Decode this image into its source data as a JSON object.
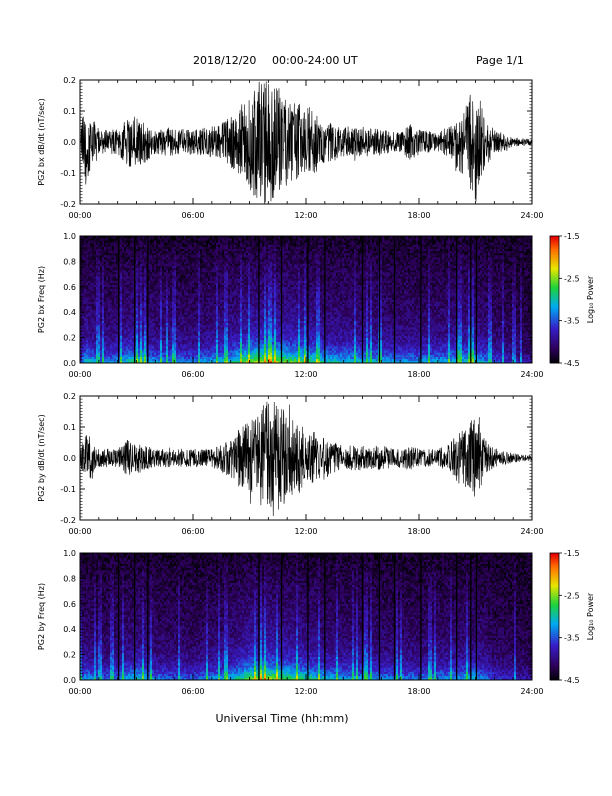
{
  "header": {
    "date": "2018/12/20",
    "time_range": "00:00-24:00 UT",
    "page": "Page 1/1"
  },
  "footer": {
    "xlabel": "Universal Time (hh:mm)"
  },
  "colorbar": {
    "label": "Log₁₀ Power",
    "ticks": [
      "-1.5",
      "-2.5",
      "-3.5",
      "-4.5"
    ],
    "range": [
      -4.5,
      -1.5
    ]
  },
  "chart_data": [
    {
      "type": "line",
      "title": "",
      "ylabel": "PG2 bx dB/dt (nT/sec)",
      "xlabel": "",
      "xlim": [
        "00:00",
        "24:00"
      ],
      "ylim": [
        -0.2,
        0.2
      ],
      "xticks": [
        "00:00",
        "06:00",
        "12:00",
        "18:00",
        "24:00"
      ],
      "yticks": [
        "0.2",
        "0.1",
        "0.0",
        "-0.1",
        "-0.2"
      ],
      "envelope": {
        "x_hours": [
          0,
          0.3,
          1,
          2,
          2.5,
          3,
          4,
          5,
          6,
          7,
          8,
          8.5,
          9,
          9.5,
          10,
          10.5,
          11,
          11.5,
          12,
          12.5,
          13,
          14,
          15,
          16,
          17,
          17.5,
          18,
          19,
          19.5,
          20,
          20.5,
          21,
          21.5,
          22,
          23,
          24
        ],
        "amplitude": [
          0.02,
          0.15,
          0.04,
          0.04,
          0.08,
          0.09,
          0.04,
          0.05,
          0.04,
          0.05,
          0.08,
          0.12,
          0.15,
          0.2,
          0.2,
          0.18,
          0.15,
          0.13,
          0.12,
          0.1,
          0.07,
          0.05,
          0.05,
          0.04,
          0.03,
          0.06,
          0.04,
          0.03,
          0.05,
          0.09,
          0.12,
          0.2,
          0.08,
          0.04,
          0.015,
          0.01
        ]
      }
    },
    {
      "type": "heatmap",
      "title": "",
      "ylabel": "PG2 bx Freq (Hz)",
      "xlabel": "",
      "xlim": [
        "00:00",
        "24:00"
      ],
      "ylim": [
        0.0,
        1.0
      ],
      "xticks": [
        "00:00",
        "06:00",
        "12:00",
        "18:00",
        "24:00"
      ],
      "yticks": [
        "1.0",
        "0.8",
        "0.6",
        "0.4",
        "0.2",
        "0.0"
      ],
      "zlim": [
        -4.5,
        -1.5
      ],
      "activity": {
        "x_hours": [
          0,
          0.3,
          1,
          2,
          3,
          4,
          6,
          8,
          9,
          10,
          11,
          12,
          13,
          15,
          17,
          18,
          20,
          21,
          22,
          23,
          24
        ],
        "level": [
          0.3,
          0.55,
          0.4,
          0.45,
          0.6,
          0.45,
          0.4,
          0.55,
          0.75,
          0.8,
          0.7,
          0.65,
          0.55,
          0.5,
          0.45,
          0.45,
          0.5,
          0.55,
          0.35,
          0.25,
          0.2
        ]
      },
      "data_gaps_hours": [
        2.05,
        2.9,
        3.6,
        9.5,
        10.7,
        12.1,
        13.0,
        15.0,
        15.9,
        16.7,
        18.1,
        20.0,
        20.75,
        21.05
      ]
    },
    {
      "type": "line",
      "title": "",
      "ylabel": "PG2 by dB/dt (nT/sec)",
      "xlabel": "",
      "xlim": [
        "00:00",
        "24:00"
      ],
      "ylim": [
        -0.2,
        0.2
      ],
      "xticks": [
        "00:00",
        "06:00",
        "12:00",
        "18:00",
        "24:00"
      ],
      "yticks": [
        "0.2",
        "0.1",
        "0.0",
        "-0.1",
        "-0.2"
      ],
      "envelope": {
        "x_hours": [
          0,
          0.3,
          1,
          2,
          2.5,
          3,
          4,
          5,
          6,
          7,
          8,
          8.5,
          9,
          9.5,
          10,
          10.5,
          11,
          11.5,
          12,
          13,
          14,
          15,
          16,
          17,
          17.5,
          18,
          19,
          19.5,
          20,
          20.5,
          21,
          21.5,
          22,
          23,
          24
        ],
        "amplitude": [
          0.02,
          0.1,
          0.03,
          0.03,
          0.06,
          0.05,
          0.03,
          0.03,
          0.03,
          0.03,
          0.06,
          0.1,
          0.12,
          0.14,
          0.2,
          0.18,
          0.15,
          0.12,
          0.1,
          0.07,
          0.04,
          0.04,
          0.04,
          0.03,
          0.04,
          0.03,
          0.03,
          0.04,
          0.08,
          0.1,
          0.14,
          0.06,
          0.03,
          0.015,
          0.01
        ]
      }
    },
    {
      "type": "heatmap",
      "title": "",
      "ylabel": "PG2 by Freq (Hz)",
      "xlabel": "",
      "xlim": [
        "00:00",
        "24:00"
      ],
      "ylim": [
        0.0,
        1.0
      ],
      "xticks": [
        "00:00",
        "06:00",
        "12:00",
        "18:00",
        "24:00"
      ],
      "yticks": [
        "1.0",
        "0.8",
        "0.6",
        "0.4",
        "0.2",
        "0.0"
      ],
      "zlim": [
        -4.5,
        -1.5
      ],
      "activity": {
        "x_hours": [
          0,
          0.3,
          1,
          2,
          3,
          4,
          6,
          8,
          9,
          10,
          11,
          12,
          13,
          15,
          17,
          18,
          20,
          21,
          22,
          23,
          24
        ],
        "level": [
          0.3,
          0.5,
          0.35,
          0.4,
          0.55,
          0.4,
          0.35,
          0.5,
          0.7,
          0.75,
          0.65,
          0.6,
          0.5,
          0.45,
          0.4,
          0.4,
          0.45,
          0.5,
          0.3,
          0.25,
          0.2
        ]
      },
      "data_gaps_hours": [
        2.05,
        2.9,
        3.6,
        9.5,
        10.7,
        12.1,
        13.0,
        15.0,
        15.9,
        16.7,
        18.1,
        20.0,
        20.75,
        21.05
      ]
    }
  ]
}
